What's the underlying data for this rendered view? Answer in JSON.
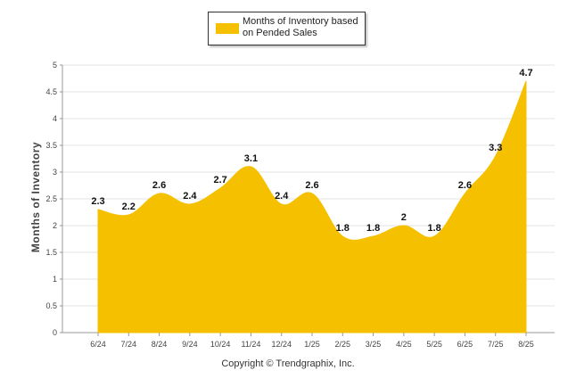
{
  "chart_data": {
    "type": "area",
    "categories": [
      "6/24",
      "7/24",
      "8/24",
      "9/24",
      "10/24",
      "11/24",
      "12/24",
      "1/25",
      "2/25",
      "3/25",
      "4/25",
      "5/25",
      "6/25",
      "7/25",
      "8/25"
    ],
    "series": [
      {
        "name": "Months of Inventory based on Pended Sales",
        "values": [
          2.3,
          2.2,
          2.6,
          2.4,
          2.7,
          3.1,
          2.4,
          2.6,
          1.8,
          1.8,
          2,
          1.8,
          2.6,
          3.3,
          4.7
        ],
        "color": "#F5C000"
      }
    ],
    "ylabel": "Months of Inventory",
    "ylim": [
      0,
      5
    ],
    "yticks": [
      "0",
      "0.5",
      "1",
      "1.5",
      "2",
      "2.5",
      "3",
      "3.5",
      "4",
      "4.5",
      "5"
    ],
    "grid": true,
    "legend_position": "top-center"
  },
  "legend": {
    "label": "Months of Inventory based on Pended Sales"
  },
  "footer": {
    "copyright": "Copyright © Trendgraphix, Inc."
  }
}
